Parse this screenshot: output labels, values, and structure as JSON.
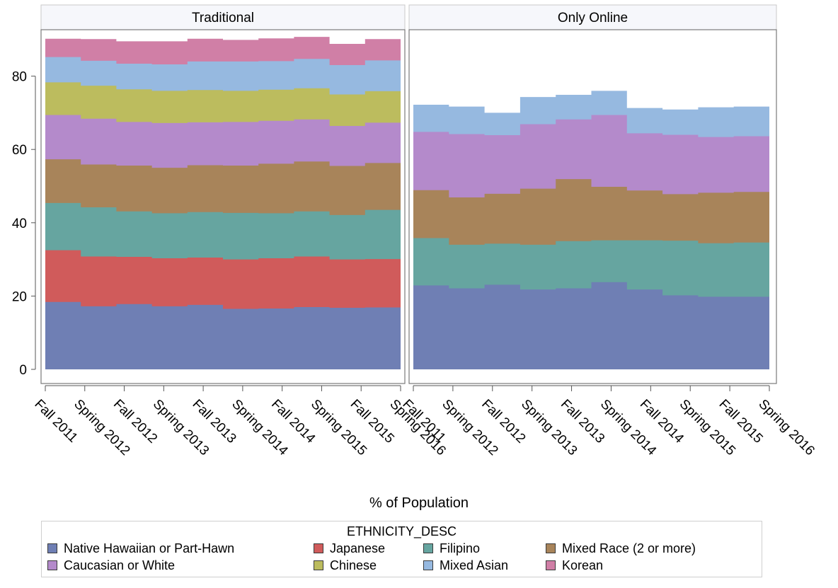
{
  "chart_data": {
    "type": "area",
    "panels": [
      "Traditional",
      "Only Online"
    ],
    "categories": [
      "Fall 2011",
      "Spring 2012",
      "Fall 2012",
      "Spring 2013",
      "Fall 2013",
      "Spring 2014",
      "Fall 2014",
      "Spring 2015",
      "Fall 2015",
      "Spring 2016"
    ],
    "xlabel": "% of Population",
    "ylim": [
      0,
      91
    ],
    "yticks": [
      0,
      20,
      40,
      60,
      80
    ],
    "stacked": true,
    "step": true,
    "legend": {
      "title": "ETHNICITY_DESC",
      "position": "bottom",
      "entries": [
        "Native Hawaiian or Part-Hawn",
        "Japanese",
        "Filipino",
        "Mixed Race (2 or more)",
        "Caucasian or White",
        "Chinese",
        "Mixed Asian",
        "Korean"
      ]
    },
    "stack_order": [
      "Native Hawaiian or Part-Hawn",
      "Japanese",
      "Filipino",
      "Mixed Race (2 or more)",
      "Caucasian or White",
      "Chinese",
      "Mixed Asian",
      "Korean"
    ],
    "series": [
      {
        "name": "Native Hawaiian or Part-Hawn",
        "color": "#6f7fb4",
        "values": {
          "Traditional": [
            18.4,
            17.2,
            17.8,
            17.2,
            17.6,
            16.5,
            16.6,
            17.0,
            16.8,
            16.9
          ],
          "Only Online": [
            22.9,
            22.1,
            23.1,
            21.8,
            22.1,
            23.8,
            21.8,
            20.2,
            19.8,
            19.8
          ]
        }
      },
      {
        "name": "Japanese",
        "color": "#d05b5b",
        "values": {
          "Traditional": [
            14.1,
            13.6,
            12.9,
            13.1,
            12.9,
            13.5,
            13.7,
            13.8,
            13.2,
            13.2
          ],
          "Only Online": [
            0,
            0,
            0,
            0,
            0,
            0,
            0,
            0,
            0,
            0
          ]
        }
      },
      {
        "name": "Filipino",
        "color": "#66a5a0",
        "values": {
          "Traditional": [
            12.9,
            13.4,
            12.4,
            12.3,
            12.4,
            12.7,
            12.3,
            12.3,
            12.1,
            13.4
          ],
          "Only Online": [
            12.9,
            11.9,
            11.2,
            12.2,
            12.9,
            11.4,
            13.4,
            14.9,
            14.6,
            14.8
          ]
        }
      },
      {
        "name": "Mixed Race (2 or more)",
        "color": "#a8845a",
        "values": {
          "Traditional": [
            11.9,
            11.7,
            12.5,
            12.4,
            12.8,
            12.9,
            13.5,
            13.6,
            13.4,
            12.8
          ],
          "Only Online": [
            13.1,
            12.9,
            13.6,
            15.3,
            16.9,
            14.6,
            13.6,
            12.7,
            13.8,
            13.8
          ]
        }
      },
      {
        "name": "Caucasian or White",
        "color": "#b48acb",
        "values": {
          "Traditional": [
            12.1,
            12.5,
            11.9,
            12.2,
            11.7,
            11.9,
            11.7,
            11.5,
            10.9,
            11.0
          ],
          "Only Online": [
            15.9,
            17.3,
            16.0,
            17.6,
            16.3,
            19.6,
            15.6,
            16.2,
            15.2,
            15.2
          ]
        }
      },
      {
        "name": "Chinese",
        "color": "#bcbc5e",
        "values": {
          "Traditional": [
            8.9,
            9.0,
            8.9,
            8.8,
            8.8,
            8.5,
            8.5,
            8.5,
            8.6,
            8.6
          ],
          "Only Online": [
            0,
            0,
            0,
            0,
            0,
            0,
            0,
            0,
            0,
            0
          ]
        }
      },
      {
        "name": "Mixed Asian",
        "color": "#96b9e0",
        "values": {
          "Traditional": [
            6.9,
            6.8,
            7.0,
            7.2,
            7.8,
            8.0,
            7.8,
            8.0,
            8.0,
            8.4
          ],
          "Only Online": [
            7.4,
            7.5,
            6.1,
            7.4,
            6.7,
            6.6,
            6.9,
            6.9,
            8.1,
            8.1
          ]
        }
      },
      {
        "name": "Korean",
        "color": "#d07fa6",
        "values": {
          "Traditional": [
            5.0,
            5.9,
            6.1,
            6.3,
            6.2,
            5.9,
            6.2,
            6.0,
            5.8,
            5.8
          ],
          "Only Online": [
            0,
            0,
            0,
            0,
            0,
            0,
            0,
            0,
            0,
            0
          ]
        }
      }
    ]
  }
}
